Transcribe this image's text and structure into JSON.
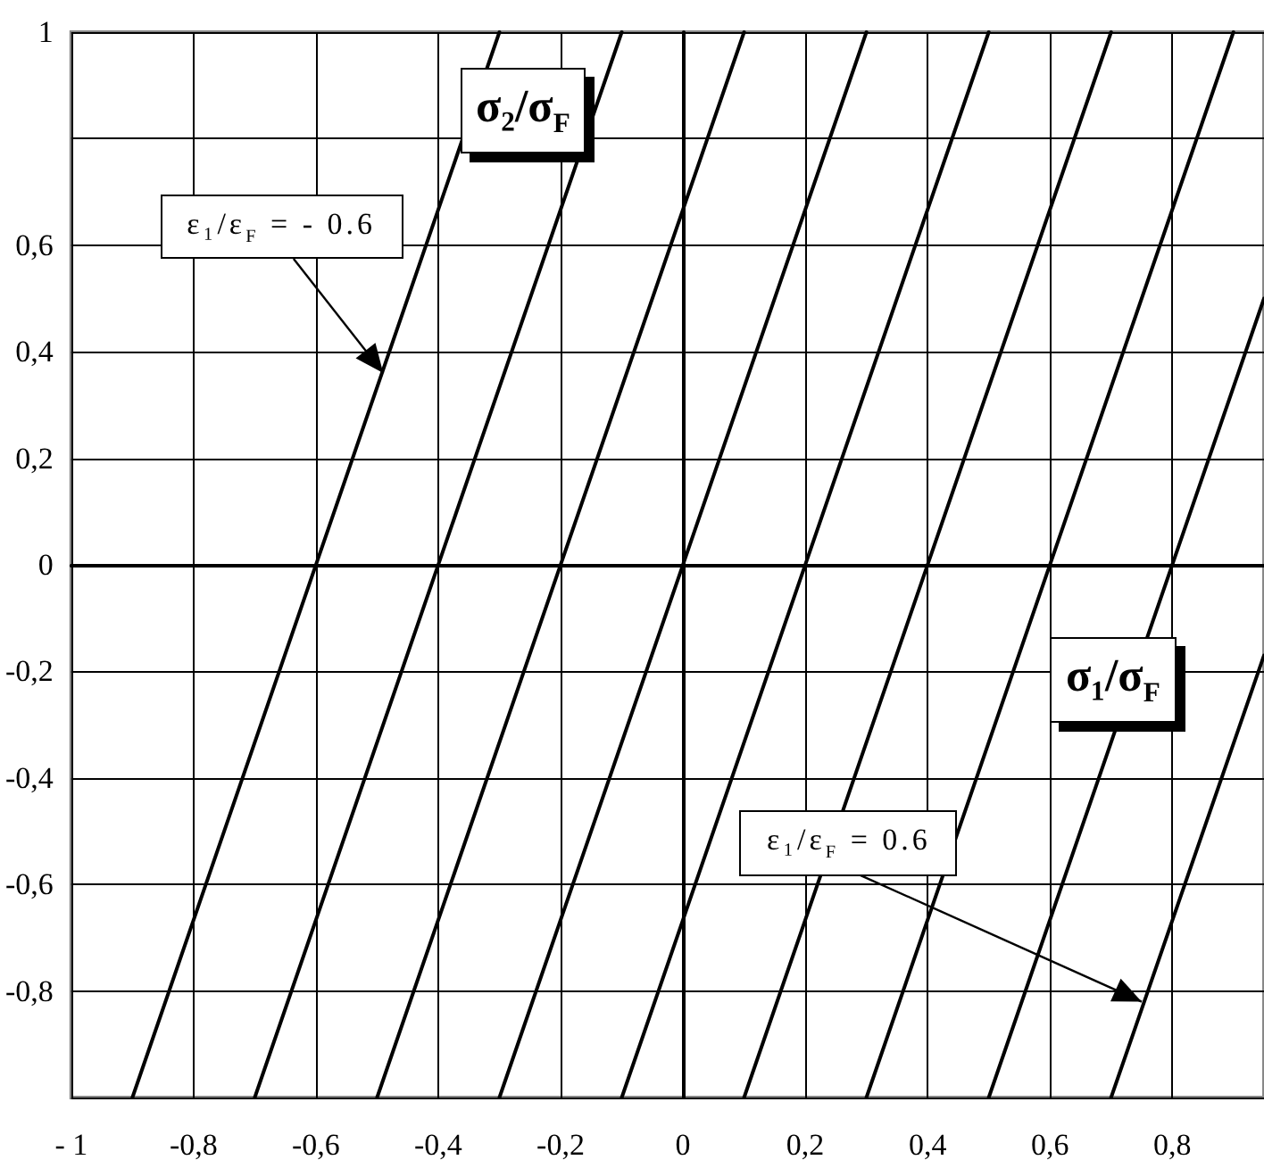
{
  "chart_data": {
    "type": "line",
    "xlabel": "σ₁/σ$_{F}$",
    "ylabel": "σ₂/σ$_{F}$",
    "xlim": [
      -1,
      0.95
    ],
    "ylim": [
      -1,
      1
    ],
    "xticks": [
      {
        "value": -1,
        "label": "- 1"
      },
      {
        "value": -0.8,
        "label": "-0,8"
      },
      {
        "value": -0.6,
        "label": "-0,6"
      },
      {
        "value": -0.4,
        "label": "-0,4"
      },
      {
        "value": -0.2,
        "label": "-0,2"
      },
      {
        "value": 0,
        "label": "0"
      },
      {
        "value": 0.2,
        "label": "0,2"
      },
      {
        "value": 0.4,
        "label": "0,4"
      },
      {
        "value": 0.6,
        "label": "0,6"
      },
      {
        "value": 0.8,
        "label": "0,8"
      }
    ],
    "yticks": [
      {
        "value": -1,
        "label": null
      },
      {
        "value": -0.8,
        "label": "-0,8"
      },
      {
        "value": -0.6,
        "label": "-0,6"
      },
      {
        "value": -0.4,
        "label": "-0,4"
      },
      {
        "value": -0.2,
        "label": "-0,2"
      },
      {
        "value": 0,
        "label": "0"
      },
      {
        "value": 0.2,
        "label": "0,2"
      },
      {
        "value": 0.4,
        "label": "0,4"
      },
      {
        "value": 0.6,
        "label": "0,6"
      },
      {
        "value": 0.8,
        "label": null
      },
      {
        "value": 1,
        "label": "1"
      }
    ],
    "grid": true,
    "marker": "none",
    "line_style": "solid",
    "series": [
      {
        "color": "#000000",
        "x": [
          -0.9,
          -0.3
        ],
        "values": [
          -1,
          1
        ]
      },
      {
        "color": "#000000",
        "x": [
          -0.7,
          -0.1
        ],
        "values": [
          -1,
          1
        ]
      },
      {
        "color": "#000000",
        "x": [
          -0.5,
          0.1
        ],
        "values": [
          -1,
          1
        ]
      },
      {
        "color": "#000000",
        "x": [
          -0.3,
          0.3
        ],
        "values": [
          -1,
          1
        ]
      },
      {
        "color": "#000000",
        "x": [
          -0.1,
          0.5
        ],
        "values": [
          -1,
          1
        ]
      },
      {
        "color": "#000000",
        "x": [
          0.1,
          0.7
        ],
        "values": [
          -1,
          1
        ]
      },
      {
        "color": "#000000",
        "x": [
          0.3,
          0.9
        ],
        "values": [
          -1,
          1
        ]
      },
      {
        "color": "#000000",
        "x": [
          0.5,
          0.95
        ],
        "values": [
          -1,
          0.5
        ]
      },
      {
        "color": "#000000",
        "x": [
          0.7,
          0.95
        ],
        "values": [
          -1,
          -0.17
        ]
      }
    ],
    "annotations": [
      {
        "text": "ε₁/ε$_{F}$ = - 0.6",
        "x": -0.49,
        "y": 0.36
      },
      {
        "text": "ε₁/ε$_{F}$ = 0.6",
        "x": 0.75,
        "y": -0.82
      }
    ]
  }
}
